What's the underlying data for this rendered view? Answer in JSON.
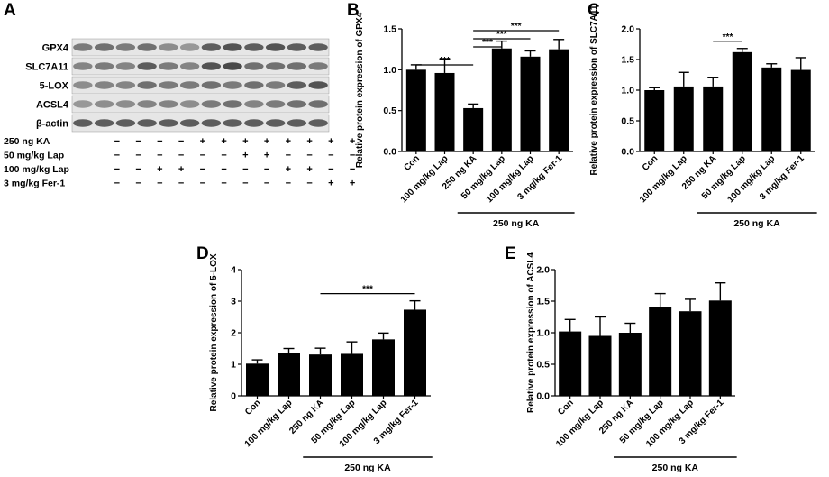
{
  "panel_labels": [
    "A",
    "B",
    "C",
    "D",
    "E"
  ],
  "blot": {
    "bands": [
      "GPX4",
      "SLC7A11",
      "5-LOX",
      "ACSL4",
      "β-actin"
    ],
    "lanes": 12,
    "conditions": [
      {
        "label": "250 ng KA",
        "signs": [
          "−",
          "−",
          "−",
          "−",
          "+",
          "+",
          "+",
          "+",
          "+",
          "+",
          "+",
          "+"
        ]
      },
      {
        "label": "50 mg/kg Lap",
        "signs": [
          "−",
          "−",
          "−",
          "−",
          "−",
          "−",
          "+",
          "+",
          "−",
          "−",
          "−",
          "−"
        ]
      },
      {
        "label": "100 mg/kg Lap",
        "signs": [
          "−",
          "−",
          "+",
          "+",
          "−",
          "−",
          "−",
          "−",
          "+",
          "+",
          "−",
          "−"
        ]
      },
      {
        "label": "3 mg/kg Fer-1",
        "signs": [
          "−",
          "−",
          "−",
          "−",
          "−",
          "−",
          "−",
          "−",
          "−",
          "−",
          "+",
          "+"
        ]
      }
    ]
  },
  "chart_data": [
    {
      "panel": "B",
      "type": "bar",
      "categories": [
        "Con",
        "100 mg/kg Lap",
        "250 ng KA",
        "50 mg/kg Lap",
        "100 mg/kg Lap",
        "3 mg/kg Fer-1"
      ],
      "values": [
        1.0,
        0.96,
        0.53,
        1.26,
        1.16,
        1.25
      ],
      "errors": [
        0.06,
        0.17,
        0.05,
        0.09,
        0.07,
        0.12
      ],
      "ylabel": "Relative protein expression of GPX4",
      "ylim": [
        0,
        1.5
      ],
      "yticks": [
        "0.0",
        "0.5",
        "1.0",
        "1.5"
      ],
      "group_label": "250 ng KA",
      "group_span": [
        2,
        5
      ],
      "significance": [
        {
          "from": 0,
          "to": 2,
          "text": "***"
        },
        {
          "from": 2,
          "to": 3,
          "text": "***"
        },
        {
          "from": 2,
          "to": 4,
          "text": "***"
        },
        {
          "from": 2,
          "to": 5,
          "text": "***"
        }
      ]
    },
    {
      "panel": "C",
      "type": "bar",
      "categories": [
        "Con",
        "100 mg/kg Lap",
        "250 ng KA",
        "50 mg/kg Lap",
        "100 mg/kg Lap",
        "3 mg/kg Fer-1"
      ],
      "values": [
        1.0,
        1.06,
        1.06,
        1.62,
        1.37,
        1.33
      ],
      "errors": [
        0.04,
        0.23,
        0.15,
        0.06,
        0.06,
        0.2
      ],
      "ylabel": "Relative protein expression of SLC7A11",
      "ylim": [
        0,
        2.0
      ],
      "yticks": [
        "0.0",
        "0.5",
        "1.0",
        "1.5",
        "2.0"
      ],
      "group_label": "250 ng KA",
      "group_span": [
        2,
        5
      ],
      "significance": [
        {
          "from": 2,
          "to": 3,
          "text": "***"
        }
      ]
    },
    {
      "panel": "D",
      "type": "bar",
      "categories": [
        "Con",
        "100 mg/kg Lap",
        "250 ng KA",
        "50 mg/kg Lap",
        "100 mg/kg Lap",
        "3 mg/kg Fer-1"
      ],
      "values": [
        1.02,
        1.35,
        1.31,
        1.33,
        1.79,
        2.73
      ],
      "errors": [
        0.12,
        0.15,
        0.2,
        0.38,
        0.2,
        0.28
      ],
      "ylabel": "Relative protein expression of 5-LOX",
      "ylim": [
        0,
        4
      ],
      "yticks": [
        "0",
        "1",
        "2",
        "3",
        "4"
      ],
      "group_label": "250 ng KA",
      "group_span": [
        2,
        5
      ],
      "significance": [
        {
          "from": 2,
          "to": 5,
          "text": "***"
        }
      ]
    },
    {
      "panel": "E",
      "type": "bar",
      "categories": [
        "Con",
        "100 mg/kg Lap",
        "250 ng KA",
        "50 mg/kg Lap",
        "100 mg/kg Lap",
        "3 mg/kg Fer-1"
      ],
      "values": [
        1.02,
        0.95,
        1.0,
        1.41,
        1.34,
        1.51
      ],
      "errors": [
        0.19,
        0.3,
        0.15,
        0.21,
        0.19,
        0.28
      ],
      "ylabel": "Relative protein expression of ACSL4",
      "ylim": [
        0,
        2.0
      ],
      "yticks": [
        "0.0",
        "0.5",
        "1.0",
        "1.5",
        "2.0"
      ],
      "group_label": "250 ng KA",
      "group_span": [
        2,
        5
      ],
      "significance": []
    }
  ]
}
